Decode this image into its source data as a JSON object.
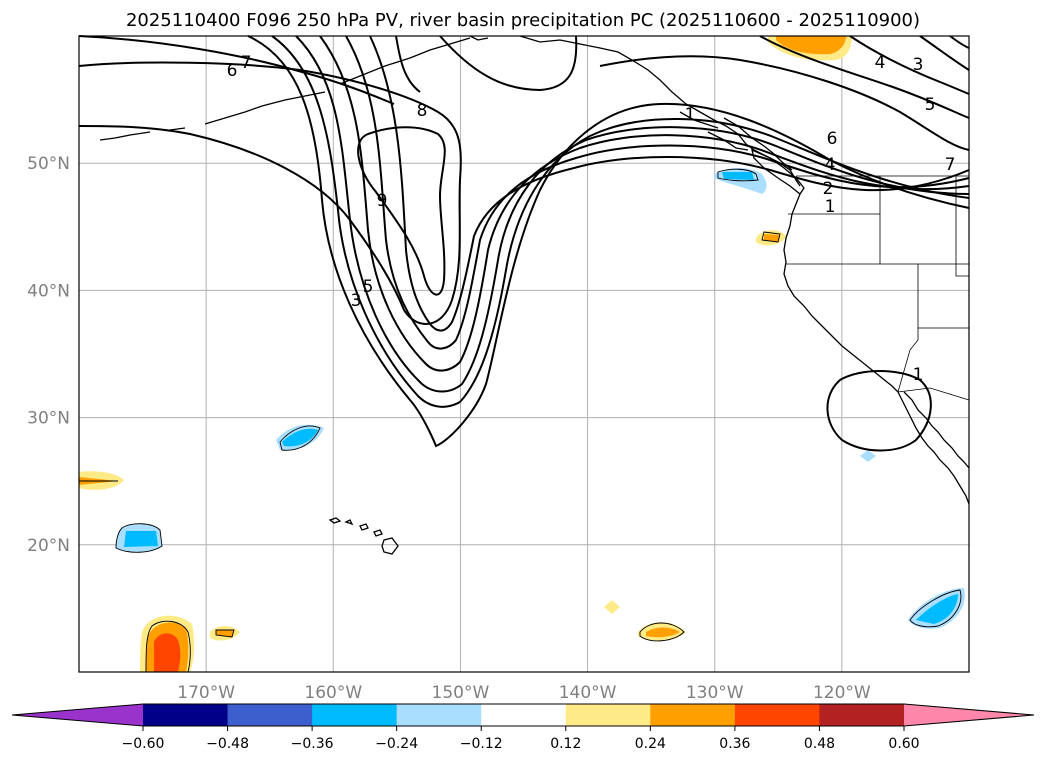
{
  "chart_data": {
    "type": "contour-map",
    "title": "2025110400 F096 250 hPa PV, river basin precipitation PC (2025110600 - 2025110900)",
    "lon_range": [
      -180,
      -110
    ],
    "lat_range": [
      10,
      60
    ],
    "x_ticks": [
      {
        "lon": -170,
        "label": "170°W"
      },
      {
        "lon": -160,
        "label": "160°W"
      },
      {
        "lon": -150,
        "label": "150°W"
      },
      {
        "lon": -140,
        "label": "140°W"
      },
      {
        "lon": -130,
        "label": "130°W"
      },
      {
        "lon": -120,
        "label": "120°W"
      }
    ],
    "y_ticks": [
      {
        "lat": 50,
        "label": "50°N"
      },
      {
        "lat": 40,
        "label": "40°N"
      },
      {
        "lat": 30,
        "label": "30°N"
      },
      {
        "lat": 20,
        "label": "20°N"
      }
    ],
    "contour_variable": "250 hPa PV",
    "contour_labels": [
      "6",
      "7",
      "8",
      "9",
      "3",
      "5",
      "4",
      "3",
      "5",
      "6",
      "4",
      "2",
      "1",
      "7",
      "1",
      "1"
    ],
    "colorbar": {
      "levels": [
        -0.6,
        -0.48,
        -0.36,
        -0.24,
        -0.12,
        0.12,
        0.24,
        0.36,
        0.48,
        0.6
      ],
      "labels": [
        "−0.60",
        "−0.48",
        "−0.36",
        "−0.24",
        "−0.12",
        "0.12",
        "0.24",
        "0.36",
        "0.48",
        "0.60"
      ],
      "colors": [
        "#9933cc",
        "#000088",
        "#3c5fcd",
        "#00bbff",
        "#aadeff",
        "#ffffff",
        "#ffea88",
        "#ffa000",
        "#ff4500",
        "#b22222",
        "#ff88aa"
      ],
      "extend": "both"
    },
    "precip_patches": [
      {
        "lon": -174,
        "lat": 20.3,
        "value": -0.36
      },
      {
        "lon": -161.5,
        "lat": 28.5,
        "value": -0.36
      },
      {
        "lon": -177,
        "lat": 25,
        "value": 0.36
      },
      {
        "lon": -173,
        "lat": 12,
        "value": 0.48
      },
      {
        "lon": -168,
        "lat": 13.1,
        "value": 0.36
      },
      {
        "lon": -138,
        "lat": 15,
        "value": 0.24
      },
      {
        "lon": -134,
        "lat": 13,
        "value": 0.36
      },
      {
        "lon": -112,
        "lat": 15,
        "value": -0.36
      },
      {
        "lon": -128.5,
        "lat": 48.8,
        "value": -0.36
      },
      {
        "lon": -126,
        "lat": 44,
        "value": 0.36
      },
      {
        "lon": -124.5,
        "lat": 59.5,
        "value": 0.36
      },
      {
        "lon": -118,
        "lat": 26.8,
        "value": -0.24
      }
    ]
  }
}
